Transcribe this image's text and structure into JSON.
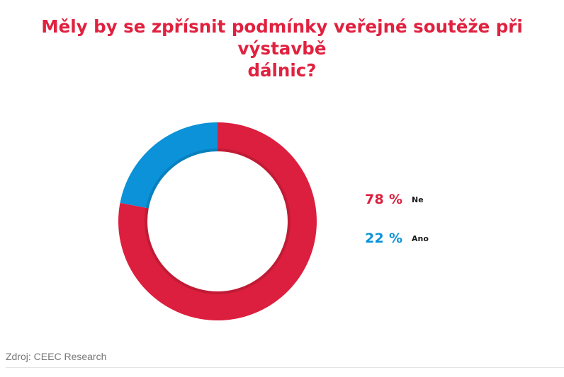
{
  "title_lines": [
    "Měly by se zpřísnit podmínky veřejné soutěže při výstavbě",
    "dálnic?"
  ],
  "source": "Zdroj: CEEC Research",
  "colors": {
    "title": "#e0213f",
    "ne": "#dc1f3e",
    "ano": "#0b92d9"
  },
  "chart_data": {
    "type": "pie",
    "donut": true,
    "title": "Měly by se zpřísnit podmínky veřejné soutěže při výstavbě dálnic?",
    "slices": [
      {
        "label": "Ne",
        "value": 78,
        "display": "78 %",
        "color": "#dc1f3e"
      },
      {
        "label": "Ano",
        "value": 22,
        "display": "22 %",
        "color": "#0b92d9"
      }
    ],
    "legend_position": "right"
  }
}
